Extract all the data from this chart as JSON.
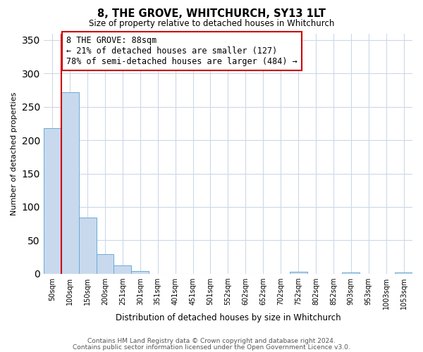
{
  "title": "8, THE GROVE, WHITCHURCH, SY13 1LT",
  "subtitle": "Size of property relative to detached houses in Whitchurch",
  "xlabel": "Distribution of detached houses by size in Whitchurch",
  "ylabel": "Number of detached properties",
  "bar_labels": [
    "50sqm",
    "100sqm",
    "150sqm",
    "200sqm",
    "251sqm",
    "301sqm",
    "351sqm",
    "401sqm",
    "451sqm",
    "501sqm",
    "552sqm",
    "602sqm",
    "652sqm",
    "702sqm",
    "752sqm",
    "802sqm",
    "852sqm",
    "903sqm",
    "953sqm",
    "1003sqm",
    "1053sqm"
  ],
  "bar_values": [
    218,
    272,
    84,
    29,
    12,
    4,
    0,
    0,
    0,
    0,
    0,
    0,
    0,
    0,
    3,
    0,
    0,
    2,
    0,
    0,
    2
  ],
  "bar_color": "#c8d9ee",
  "bar_edge_color": "#6aaad4",
  "ylim": [
    0,
    360
  ],
  "yticks": [
    0,
    50,
    100,
    150,
    200,
    250,
    300,
    350
  ],
  "vline_color": "#cc0000",
  "annotation_title": "8 THE GROVE: 88sqm",
  "annotation_line1": "← 21% of detached houses are smaller (127)",
  "annotation_line2": "78% of semi-detached houses are larger (484) →",
  "annotation_box_color": "#ffffff",
  "annotation_box_edge": "#cc0000",
  "footer1": "Contains HM Land Registry data © Crown copyright and database right 2024.",
  "footer2": "Contains public sector information licensed under the Open Government Licence v3.0.",
  "background_color": "#ffffff",
  "grid_color": "#ccd8e8"
}
